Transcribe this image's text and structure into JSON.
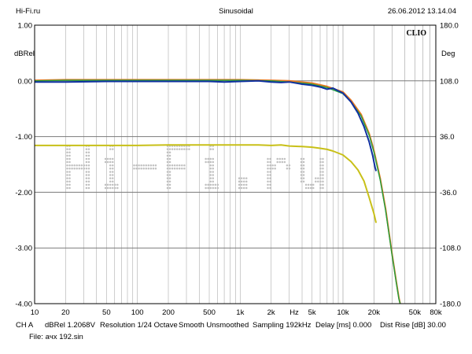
{
  "header": {
    "left": "Hi-Fi.ru",
    "center": "Sinusoidal",
    "right": "26.06.2012 13.14.04"
  },
  "brand": "CLIO",
  "watermark": "Hi-Fi.ru",
  "footer": {
    "line1": [
      "CH A",
      "dBRel 1.2068V",
      "Resolution 1/24 Octave",
      "Smooth Unsmoothed",
      "Sampling 192kHz",
      "Delay [ms] 0.000",
      "Dist Rise [dB] 30.00"
    ],
    "line2": "File: aчх 192.sin"
  },
  "chart_data": {
    "type": "line",
    "xscale": "log",
    "xlim": [
      10,
      80000
    ],
    "ylim": [
      -4.0,
      1.0
    ],
    "y2lim": [
      -180.0,
      180.0
    ],
    "ylabel": "dBRel",
    "y2label": "Deg",
    "xunit_label": "Hz",
    "x_ticks": [
      {
        "v": 10,
        "t": "10"
      },
      {
        "v": 20,
        "t": "20"
      },
      {
        "v": 50,
        "t": "50"
      },
      {
        "v": 100,
        "t": "100"
      },
      {
        "v": 200,
        "t": "200"
      },
      {
        "v": 500,
        "t": "500"
      },
      {
        "v": 1000,
        "t": "1k"
      },
      {
        "v": 2000,
        "t": "2k"
      },
      {
        "v": 5000,
        "t": "5k"
      },
      {
        "v": 10000,
        "t": "10k"
      },
      {
        "v": 20000,
        "t": "20k"
      },
      {
        "v": 50000,
        "t": "50k"
      },
      {
        "v": 80000,
        "t": "80k"
      }
    ],
    "y_ticks": [
      {
        "v": 1.0,
        "t": "1.00"
      },
      {
        "v": 0.0,
        "t": "0.00"
      },
      {
        "v": -1.0,
        "t": "-1.00"
      },
      {
        "v": -2.0,
        "t": "-2.00"
      },
      {
        "v": -3.0,
        "t": "-3.00"
      },
      {
        "v": -4.0,
        "t": "-4.00"
      }
    ],
    "y2_ticks": [
      {
        "v": 180.0,
        "t": "180.0"
      },
      {
        "v": 108.0,
        "t": "108.0"
      },
      {
        "v": 36.0,
        "t": "36.0"
      },
      {
        "v": -36.0,
        "t": "-36.0"
      },
      {
        "v": -108.0,
        "t": "-108.0"
      },
      {
        "v": -180.0,
        "t": "-180.0"
      }
    ],
    "series": [
      {
        "color": "#e87820",
        "width": 2.0,
        "points": [
          [
            10,
            0.01
          ],
          [
            20,
            0.02
          ],
          [
            50,
            0.02
          ],
          [
            100,
            0.02
          ],
          [
            200,
            0.02
          ],
          [
            500,
            0.02
          ],
          [
            1000,
            0.02
          ],
          [
            2000,
            0.01
          ],
          [
            3000,
            0.0
          ],
          [
            5000,
            -0.04
          ],
          [
            7000,
            -0.1
          ],
          [
            10000,
            -0.2
          ],
          [
            12000,
            -0.35
          ],
          [
            15000,
            -0.6
          ],
          [
            18000,
            -0.95
          ],
          [
            20000,
            -1.25
          ],
          [
            23000,
            -1.75
          ],
          [
            26000,
            -2.3
          ],
          [
            30000,
            -3.1
          ],
          [
            33000,
            -3.6
          ],
          [
            35000,
            -3.9
          ],
          [
            36000,
            -4.0
          ]
        ]
      },
      {
        "color": "#20a040",
        "width": 1.4,
        "points": [
          [
            10,
            0.0
          ],
          [
            20,
            0.01
          ],
          [
            50,
            0.01
          ],
          [
            100,
            0.01
          ],
          [
            200,
            0.01
          ],
          [
            500,
            0.01
          ],
          [
            1000,
            0.01
          ],
          [
            2000,
            0.0
          ],
          [
            3000,
            -0.02
          ],
          [
            5000,
            -0.06
          ],
          [
            7000,
            -0.12
          ],
          [
            10000,
            -0.23
          ],
          [
            12000,
            -0.38
          ],
          [
            15000,
            -0.63
          ],
          [
            18000,
            -0.98
          ],
          [
            20000,
            -1.28
          ],
          [
            23000,
            -1.78
          ],
          [
            26000,
            -2.33
          ],
          [
            30000,
            -3.12
          ],
          [
            33000,
            -3.62
          ],
          [
            35000,
            -3.92
          ],
          [
            36000,
            -4.0
          ]
        ]
      },
      {
        "color": "#1030a0",
        "width": 2.0,
        "points": [
          [
            10,
            -0.02
          ],
          [
            20,
            -0.02
          ],
          [
            50,
            -0.01
          ],
          [
            100,
            -0.01
          ],
          [
            200,
            -0.01
          ],
          [
            500,
            -0.01
          ],
          [
            700,
            -0.02
          ],
          [
            1000,
            -0.01
          ],
          [
            1500,
            0.0
          ],
          [
            2000,
            -0.02
          ],
          [
            2500,
            -0.03
          ],
          [
            3000,
            -0.02
          ],
          [
            4000,
            -0.06
          ],
          [
            5000,
            -0.08
          ],
          [
            6000,
            -0.11
          ],
          [
            7000,
            -0.15
          ],
          [
            8000,
            -0.13
          ],
          [
            9000,
            -0.18
          ],
          [
            10000,
            -0.22
          ],
          [
            12000,
            -0.38
          ],
          [
            14000,
            -0.58
          ],
          [
            16000,
            -0.82
          ],
          [
            18000,
            -1.1
          ],
          [
            19500,
            -1.35
          ],
          [
            20500,
            -1.55
          ],
          [
            21000,
            -1.62
          ]
        ]
      },
      {
        "color": "#c8c018",
        "width": 2.0,
        "points": [
          [
            10,
            -1.16
          ],
          [
            20,
            -1.16
          ],
          [
            50,
            -1.16
          ],
          [
            100,
            -1.16
          ],
          [
            200,
            -1.15
          ],
          [
            500,
            -1.15
          ],
          [
            1000,
            -1.15
          ],
          [
            1500,
            -1.15
          ],
          [
            2000,
            -1.16
          ],
          [
            2500,
            -1.15
          ],
          [
            3000,
            -1.17
          ],
          [
            4000,
            -1.18
          ],
          [
            5000,
            -1.19
          ],
          [
            6000,
            -1.21
          ],
          [
            7000,
            -1.23
          ],
          [
            8000,
            -1.26
          ],
          [
            10000,
            -1.33
          ],
          [
            12000,
            -1.45
          ],
          [
            14000,
            -1.6
          ],
          [
            16000,
            -1.8
          ],
          [
            18000,
            -2.1
          ],
          [
            20000,
            -2.38
          ],
          [
            21000,
            -2.55
          ]
        ]
      }
    ],
    "grid": true
  }
}
